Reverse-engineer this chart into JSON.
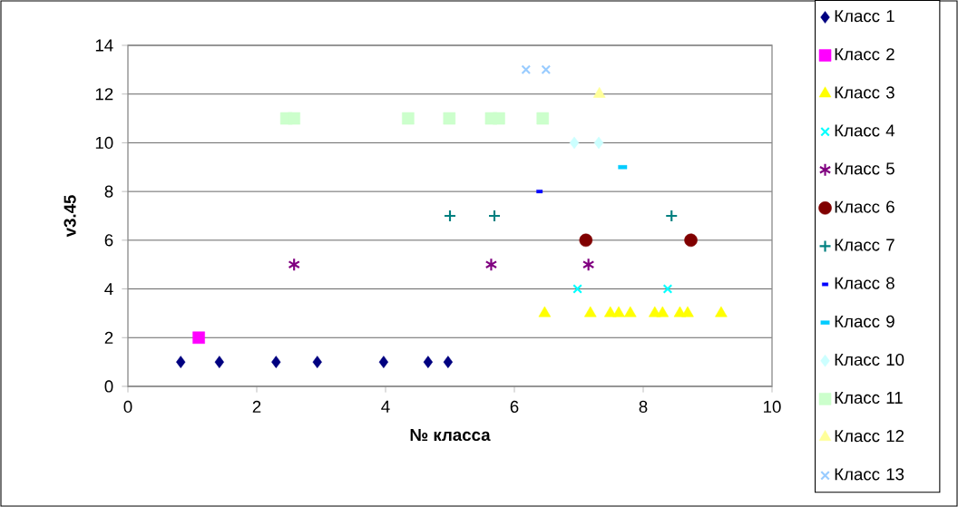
{
  "chart_data": {
    "type": "scatter",
    "xlabel": "№ класса",
    "ylabel": "v3.45",
    "xlim": [
      0,
      10
    ],
    "ylim": [
      0,
      14
    ],
    "xticks": [
      0,
      2,
      4,
      6,
      8,
      10
    ],
    "yticks": [
      0,
      2,
      4,
      6,
      8,
      10,
      12,
      14
    ],
    "grid": "y",
    "legend": "right",
    "series": [
      {
        "name": "Класс 1",
        "color": "#000080",
        "marker": "diamond",
        "x": [
          0.82,
          1.42,
          2.3,
          2.94,
          3.97,
          4.66,
          4.97
        ],
        "values": [
          1,
          1,
          1,
          1,
          1,
          1,
          1
        ]
      },
      {
        "name": "Класс 2",
        "color": "#ff00ff",
        "marker": "square",
        "x": [
          1.1
        ],
        "values": [
          2
        ]
      },
      {
        "name": "Класс 3",
        "color": "#ffff00",
        "marker": "triangle",
        "x": [
          6.47,
          7.18,
          7.49,
          7.62,
          7.8,
          8.18,
          8.3,
          8.57,
          8.69,
          9.21
        ],
        "values": [
          3,
          3,
          3,
          3,
          3,
          3,
          3,
          3,
          3,
          3
        ]
      },
      {
        "name": "Класс 4",
        "color": "#00ffff",
        "marker": "cross",
        "x": [
          6.98,
          8.38
        ],
        "values": [
          4,
          4
        ]
      },
      {
        "name": "Класс 5",
        "color": "#800080",
        "marker": "cross",
        "x": [
          2.58,
          5.64,
          7.15
        ],
        "values": [
          5,
          5,
          5
        ]
      },
      {
        "name": "Класс 6",
        "color": "#800000",
        "marker": "circle",
        "x": [
          7.11,
          8.74
        ],
        "values": [
          6,
          6
        ]
      },
      {
        "name": "Класс 7",
        "color": "#008080",
        "marker": "plus",
        "x": [
          5.0,
          5.69,
          8.44
        ],
        "values": [
          7,
          7,
          7
        ]
      },
      {
        "name": "Класс 8",
        "color": "#0000ff",
        "marker": "square",
        "x": [
          6.39
        ],
        "values": [
          8
        ]
      },
      {
        "name": "Класс 9",
        "color": "#00ccff",
        "marker": "square",
        "x": [
          7.68
        ],
        "values": [
          9
        ]
      },
      {
        "name": "Класс 10",
        "color": "#ccffff",
        "marker": "diamond",
        "x": [
          6.93,
          7.31
        ],
        "values": [
          10,
          10
        ]
      },
      {
        "name": "Класс 11",
        "color": "#ccffcc",
        "marker": "square",
        "x": [
          2.46,
          2.58,
          4.35,
          4.99,
          5.64,
          5.76,
          6.44
        ],
        "values": [
          11,
          11,
          11,
          11,
          11,
          11,
          11
        ]
      },
      {
        "name": "Класс 12",
        "color": "#ffff99",
        "marker": "triangle",
        "x": [
          7.32
        ],
        "values": [
          12
        ]
      },
      {
        "name": "Класс 13",
        "color": "#99ccff",
        "marker": "cross",
        "x": [
          6.18,
          6.49
        ],
        "values": [
          13,
          13
        ]
      }
    ]
  }
}
